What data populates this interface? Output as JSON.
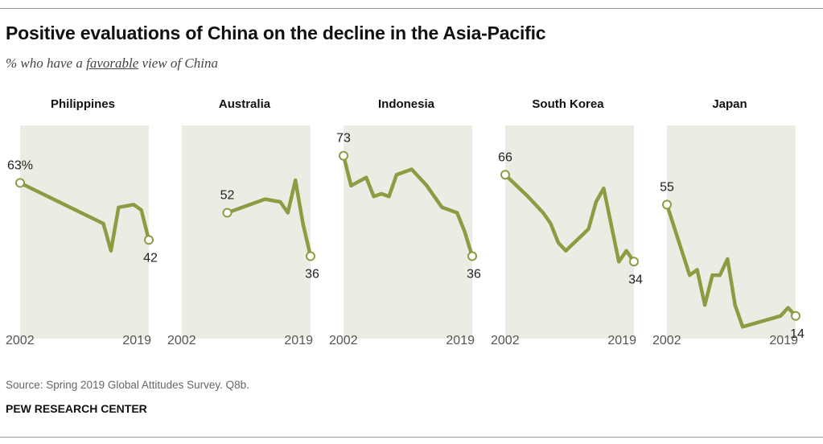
{
  "title": "Positive evaluations of China on the decline in the Asia-Pacific",
  "subtitle": {
    "prefix": "% who have a ",
    "emphasis": "favorable",
    "suffix": " view of China"
  },
  "source": "Source: Spring 2019 Global Attitudes Survey. Q8b.",
  "brand": "PEW RESEARCH CENTER",
  "colors": {
    "line": "#8d9b43",
    "panel": "#edece4",
    "marker_fill": "#ffffff",
    "text": "#222222",
    "axis_text": "#555555"
  },
  "chart_data": [
    {
      "type": "line",
      "title": "Philippines",
      "x": [
        2002,
        2007,
        2008,
        2009,
        2010,
        2011,
        2012,
        2013,
        2014,
        2015,
        2016,
        2017,
        2018,
        2019
      ],
      "values": [
        63,
        null,
        null,
        null,
        null,
        null,
        null,
        48,
        38,
        54,
        null,
        55,
        53,
        42
      ],
      "start_label": "63%",
      "end_label": "42",
      "x_tick_labels": [
        "2002",
        "2019"
      ],
      "ylim": [
        0,
        80
      ]
    },
    {
      "type": "line",
      "title": "Australia",
      "x": [
        2008,
        2013,
        2014,
        2015,
        2016,
        2017,
        2018,
        2019
      ],
      "values": [
        52,
        57,
        null,
        56,
        52,
        64,
        48,
        36
      ],
      "start_label": "52",
      "end_label": "36",
      "x_tick_labels": [
        "2002",
        "2019"
      ],
      "ylim": [
        0,
        80
      ]
    },
    {
      "type": "line",
      "title": "Indonesia",
      "x": [
        2002,
        2003,
        2005,
        2006,
        2007,
        2008,
        2009,
        2010,
        2011,
        2012,
        2013,
        2014,
        2015,
        2016,
        2017,
        2018,
        2019
      ],
      "values": [
        73,
        62,
        65,
        58,
        59,
        58,
        66,
        67,
        68,
        65,
        62,
        58,
        54,
        null,
        52,
        45,
        36
      ],
      "start_label": "73",
      "end_label": "36",
      "x_tick_labels": [
        "2002",
        "2019"
      ],
      "ylim": [
        0,
        80
      ]
    },
    {
      "type": "line",
      "title": "South Korea",
      "x": [
        2002,
        2005,
        2007,
        2008,
        2009,
        2010,
        2011,
        2012,
        2013,
        2014,
        2015,
        2016,
        2017,
        2018,
        2019
      ],
      "values": [
        66,
        58,
        52,
        48,
        41,
        38,
        null,
        null,
        46,
        56,
        61,
        null,
        34,
        38,
        34
      ],
      "start_label": "66",
      "end_label": "34",
      "x_tick_labels": [
        "2002",
        "2019"
      ],
      "ylim": [
        0,
        80
      ]
    },
    {
      "type": "line",
      "title": "Japan",
      "x": [
        2002,
        2005,
        2006,
        2007,
        2008,
        2009,
        2010,
        2011,
        2012,
        2013,
        2014,
        2015,
        2016,
        2017,
        2018,
        2019
      ],
      "values": [
        55,
        29,
        31,
        18,
        29,
        29,
        35,
        18,
        10,
        null,
        null,
        null,
        null,
        14,
        17,
        14
      ],
      "start_label": "55",
      "end_label": "14",
      "x_tick_labels": [
        "2002",
        "2019"
      ],
      "ylim": [
        0,
        80
      ]
    }
  ]
}
